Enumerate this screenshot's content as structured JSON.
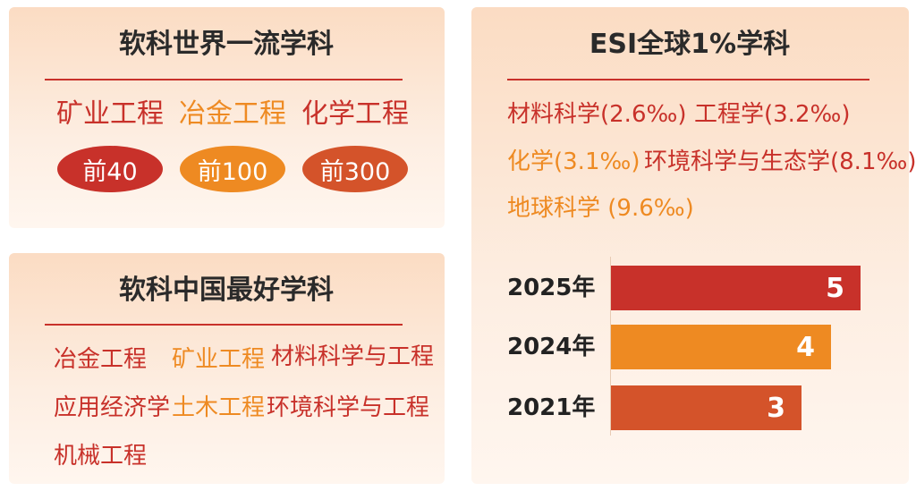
{
  "world_first_class": {
    "title": "软科世界一流学科",
    "subjects": [
      {
        "name": "矿业工程",
        "rank": "前40"
      },
      {
        "name": "冶金工程",
        "rank": "前100"
      },
      {
        "name": "化学工程",
        "rank": "前300"
      }
    ]
  },
  "china_best": {
    "title": "软科中国最好学科",
    "subjects": [
      "冶金工程",
      "矿业工程",
      "材料科学与工程",
      "应用经济学",
      "土木工程",
      "环境科学与工程",
      "机械工程"
    ]
  },
  "esi": {
    "title": "ESI全球1%学科",
    "subjects": [
      "材料科学(2.6‰)",
      "工程学(3.2‰)",
      "化学(3.1‰)",
      "环境科学与生态学(8.1‰)",
      "地球科学 (9.6‰)"
    ],
    "chart_data": {
      "type": "bar",
      "categories": [
        "2025年",
        "2024年",
        "2021年"
      ],
      "values": [
        5,
        4,
        3
      ]
    }
  }
}
